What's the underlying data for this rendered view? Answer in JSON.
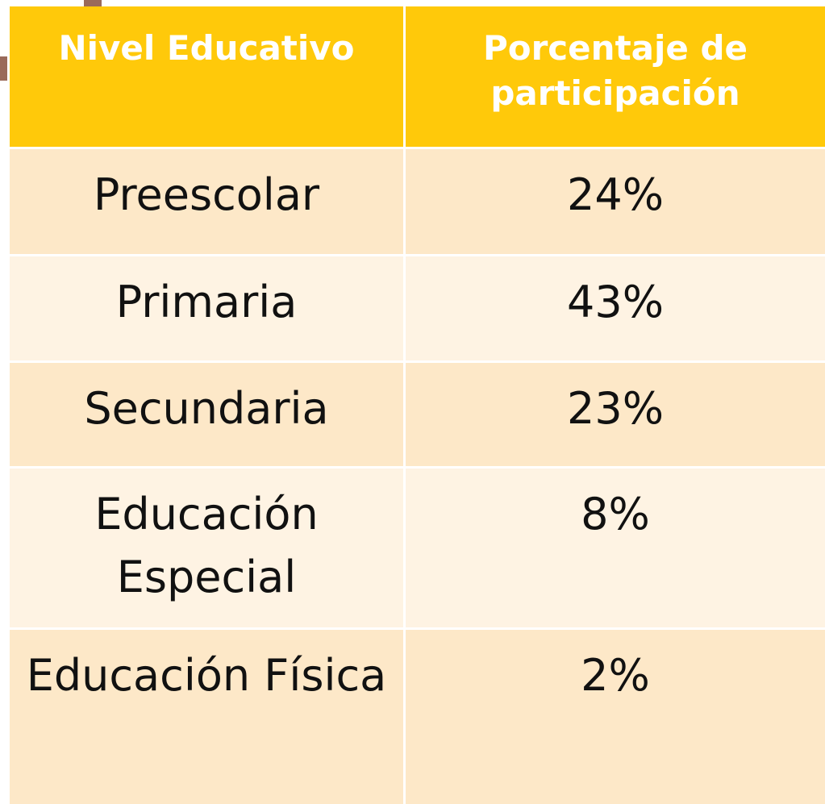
{
  "table": {
    "header": [
      "Nivel Educativo",
      "Porcentaje de participación"
    ],
    "rows": [
      [
        "Preescolar",
        "24%"
      ],
      [
        "Primaria",
        "43%"
      ],
      [
        "Secundaria",
        "23%"
      ],
      [
        "Educación Especial",
        "8%"
      ],
      [
        "Educación Física",
        "2%"
      ]
    ]
  }
}
